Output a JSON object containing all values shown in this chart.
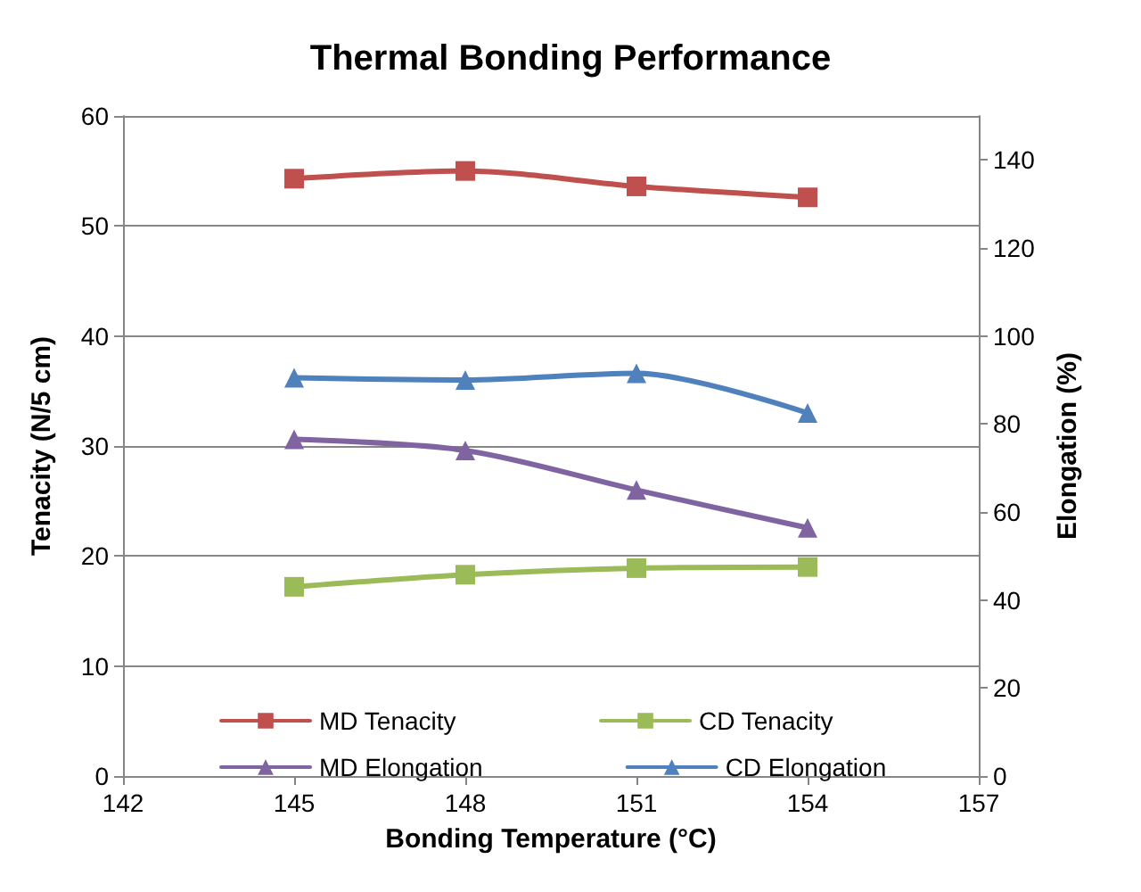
{
  "chart_data": {
    "type": "line",
    "title": "Thermal Bonding Performance",
    "xlabel": "Bonding Temperature (°C)",
    "ylabel": "Tenacity (N/5 cm)",
    "y2label": "Elongation (%)",
    "x": [
      145,
      148,
      151,
      154
    ],
    "series": [
      {
        "name": "MD Tenacity",
        "color": "#c0504d",
        "marker": "square",
        "values": [
          54.3,
          55.0,
          53.6,
          52.6
        ]
      },
      {
        "name": "CD Tenacity",
        "color": "#9bbb59",
        "marker": "square",
        "values": [
          17.2,
          18.3,
          18.9,
          19.0
        ]
      },
      {
        "name": "MD Elongation",
        "color": "#8064a2",
        "marker": "triangle",
        "axis": "y2",
        "values": [
          76.5,
          74,
          65,
          56.4
        ]
      },
      {
        "name": "CD Elongation",
        "color": "#4f81bd",
        "marker": "triangle",
        "axis": "y2",
        "values": [
          90.5,
          90,
          91.5,
          82.5
        ]
      }
    ],
    "xlim": [
      142,
      157
    ],
    "xticks": [
      142,
      145,
      148,
      151,
      154,
      157
    ],
    "ylim": [
      0,
      60
    ],
    "yticks": [
      0,
      10,
      20,
      30,
      40,
      50,
      60
    ],
    "y2lim": [
      0,
      150
    ],
    "y2ticks": [
      0,
      20,
      40,
      60,
      80,
      100,
      120,
      140
    ],
    "grid": "y",
    "legend": "bottom"
  }
}
